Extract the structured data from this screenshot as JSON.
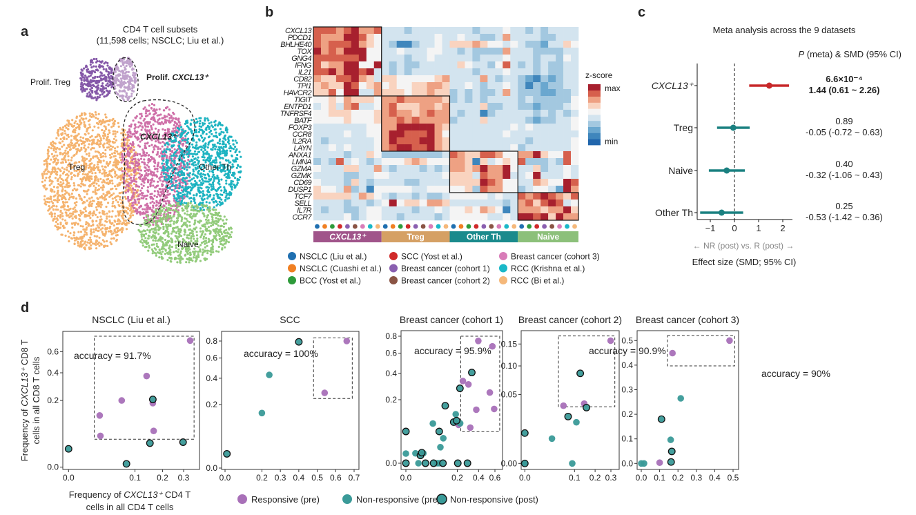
{
  "panel_labels": {
    "a": "a",
    "b": "b",
    "c": "c",
    "d": "d"
  },
  "chart_data": [
    {
      "type": "scatter",
      "panel": "a",
      "title_line1": "CD4 T cell subsets",
      "title_line2": "(11,598 cells; NSCLC; Liu et al.)",
      "clusters": [
        {
          "name": "Treg",
          "color": "#f5b36e"
        },
        {
          "name": "CXCL13⁺",
          "color": "#cf70a8"
        },
        {
          "name": "Other Th",
          "color": "#1db3c1"
        },
        {
          "name": "Naive",
          "color": "#92cb7b"
        },
        {
          "name": "Prolif. Treg",
          "color": "#8558a8"
        },
        {
          "name": "Prolif. CXCL13⁺",
          "color": "#c0a2cc"
        }
      ],
      "labels": {
        "prolif_treg": "Prolif. Treg",
        "prolif_cxcl13_prefix": "Prolif. ",
        "prolif_cxcl13_gene": "CXCL13⁺",
        "cxcl13": "CXCL13⁺",
        "treg": "Treg",
        "other_th": "Other Th",
        "naive": "Naive"
      }
    },
    {
      "type": "heatmap",
      "panel": "b",
      "gene_groups": [
        {
          "group": "CXCL13⁺",
          "genes": [
            "CXCL13",
            "PDCD1",
            "BHLHE40",
            "TOX",
            "GNG4",
            "IFNG",
            "IL21",
            "CD82",
            "TPI1",
            "HAVCR2"
          ]
        },
        {
          "group": "Treg",
          "genes": [
            "TIGIT",
            "ENTPD1",
            "TNFRSF4",
            "BATF",
            "FOXP3",
            "CCR8",
            "IL2RA",
            "LAYN"
          ]
        },
        {
          "group": "Other Th",
          "genes": [
            "ANXA1",
            "LMNA",
            "GZMA",
            "GZMK",
            "CD69",
            "DUSP1"
          ]
        },
        {
          "group": "Naive",
          "genes": [
            "TCF7",
            "SELL",
            "IL7R",
            "CCR7"
          ]
        }
      ],
      "column_groups": [
        {
          "name": "CXCL13⁺",
          "color": "#a0548a",
          "datasets": [
            0,
            1,
            2,
            3,
            4,
            5,
            6,
            7,
            8
          ]
        },
        {
          "name": "Treg",
          "color": "#d5a064",
          "datasets": [
            0,
            1,
            2,
            3,
            4,
            5,
            6,
            7,
            8
          ]
        },
        {
          "name": "Other Th",
          "color": "#1a8a8c",
          "datasets": [
            0,
            1,
            2,
            3,
            4,
            5,
            6,
            7,
            8
          ]
        },
        {
          "name": "Naive",
          "color": "#8cc07a",
          "datasets": [
            0,
            2,
            3,
            4,
            5,
            6,
            7,
            8
          ]
        }
      ],
      "datasets": [
        {
          "name": "NSCLC (Liu et al.)",
          "color": "#1f6fb0"
        },
        {
          "name": "NSCLC (Cuashi et al.)",
          "color": "#f07f22"
        },
        {
          "name": "BCC (Yost et al.)",
          "color": "#2e9b3a"
        },
        {
          "name": "SCC (Yost et al.)",
          "color": "#d02a2a"
        },
        {
          "name": "Breast cancer (cohort 1)",
          "color": "#8a5fb0"
        },
        {
          "name": "Breast cancer (cohort 2)",
          "color": "#8a5444"
        },
        {
          "name": "Breast cancer (cohort 3)",
          "color": "#d87cb8"
        },
        {
          "name": "RCC (Krishna et al.)",
          "color": "#1ab8c8"
        },
        {
          "name": "RCC (Bi et al.)",
          "color": "#f5b87a"
        }
      ],
      "z_levels_note": "0=min … 9=max",
      "z_levels": [
        "888789778 444344444 444344454 43434444",
        "877799865 444444454 454433474 44433444",
        "878889765 431134454 666765545 43324465",
        "978799955 445444554 434333374 44333344",
        "888888955 444344544 444344454 44344354",
        "867799559 434334444 465443584 34343344",
        "889799894 434344444 444344454 44343344",
        "766889764 665555567 444474344 32132344",
        "676698567 565566776 445434454 31323344",
        "668599447 666566766 343433474 33322334",
        "556576665 778777776 343434444 34333335",
        "456478445 786667767 444463344 33233345",
        "556665556 787767877 434413444 44343434",
        "555565556 778787777 344464444 43233445",
        "444444455 779999976 444444445 45444445",
        "444454455 799888975 444444454 44444444",
        "434444445 798889976 444444444 43444445",
        "445454445 789988976 444444445 34444445",
        "444434465 333333334 876688755 77965585",
        "343845434 555676555 776164565 83334385",
        "544466447 434443434 776797795 44634454",
        "444433445 544444445 666487794 45944454",
        "544436434 444334444 666698755 44765598",
        "655473415 555544555 556387755 34554297",
        "666664765 434434334 555554544 87898768",
        "444434434 595665776 444444434 78689845",
        "434433455 444434454 556576514 77767796",
        "444453455 443444434 555554454 99896977"
      ],
      "colormap": [
        "#2166ac",
        "#3f86bc",
        "#6aa7cf",
        "#a3c8e0",
        "#d3e4ef",
        "#f4f4f4",
        "#f9d3bf",
        "#eea183",
        "#d6604d",
        "#a7202e"
      ],
      "colorbar": {
        "title": "z-score",
        "max_label": "max",
        "min_label": "min"
      }
    },
    {
      "type": "forest",
      "panel": "c",
      "title": "Meta analysis across the 9 datasets",
      "header_italic": "P",
      "header_rest": " (meta) & SMD (95% CI)",
      "xlabel": "Effect size (SMD; 95% CI)",
      "direction_label": "← NR (post) vs. R (post) →",
      "xlim": [
        -1.5,
        2.4
      ],
      "xticks": [
        -1,
        0,
        1,
        2
      ],
      "xtick_labels": [
        "−1",
        "0",
        "1",
        "2"
      ],
      "rows": [
        {
          "label": "CXCL13⁺",
          "italic": true,
          "smd": 1.44,
          "lo": 0.61,
          "hi": 2.26,
          "p_text": "6.6×10⁻⁴",
          "ci_text": "1.44 (0.61 ~ 2.26)",
          "bold": true,
          "color": "#c8282a"
        },
        {
          "label": "Treg",
          "italic": false,
          "smd": -0.05,
          "lo": -0.72,
          "hi": 0.63,
          "p_text": "0.89",
          "ci_text": "-0.05 (-0.72 ~ 0.63)",
          "bold": false,
          "color": "#1a8080"
        },
        {
          "label": "Naive",
          "italic": false,
          "smd": -0.32,
          "lo": -1.06,
          "hi": 0.43,
          "p_text": "0.40",
          "ci_text": "-0.32 (-1.06 ~ 0.43)",
          "bold": false,
          "color": "#1a8080"
        },
        {
          "label": "Other Th",
          "italic": false,
          "smd": -0.53,
          "lo": -1.42,
          "hi": 0.36,
          "p_text": "0.25",
          "ci_text": "-0.53 (-1.42 ~ 0.36)",
          "bold": false,
          "color": "#1a8080"
        }
      ]
    },
    {
      "type": "scatter",
      "panel": "d",
      "title": "NSCLC (Liu et al.)",
      "accuracy_text": "accuracy = 91.7%",
      "xscale": "sqrt",
      "yscale": "sqrt",
      "xticks": [
        0,
        0.1,
        0.2,
        0.3
      ],
      "xtick_labels": [
        "0.0",
        "0.1",
        "0.2",
        "0.3"
      ],
      "yticks": [
        0,
        0.2,
        0.4,
        0.6
      ],
      "ytick_labels": [
        "0.0",
        "0.2",
        "0.4",
        "0.6"
      ],
      "box": {
        "x": [
          0.015,
          0.357
        ],
        "y": [
          0.035,
          0.77
        ]
      },
      "points": [
        [
          0.335,
          0.72,
          "R_pre"
        ],
        [
          0.138,
          0.373,
          "R_pre"
        ],
        [
          0.064,
          0.2,
          "R_pre"
        ],
        [
          0.161,
          0.184,
          "R_pre"
        ],
        [
          0.022,
          0.12,
          "R_pre"
        ],
        [
          0.023,
          0.044,
          "R_pre"
        ],
        [
          0.164,
          0.059,
          "R_pre"
        ],
        [
          0.161,
          0.206,
          "NR_post"
        ],
        [
          0,
          0.015,
          "NR_post"
        ],
        [
          0.076,
          0.0005,
          "NR_post"
        ],
        [
          0.15,
          0.026,
          "NR_post"
        ],
        [
          0.297,
          0.028,
          "NR_post"
        ]
      ]
    },
    {
      "type": "scatter",
      "panel": "d",
      "title": "SCC",
      "accuracy_text": "accuracy = 100%",
      "xscale": "linear",
      "yscale": "sqrt",
      "xticks": [
        0,
        0.2,
        0.3,
        0.4,
        0.5,
        0.6,
        0.7
      ],
      "xtick_labels": [
        "0.0",
        "0.2",
        "0.3",
        "0.4",
        "0.5",
        "0.6",
        "0.7"
      ],
      "yticks": [
        0,
        0.2,
        0.4,
        0.6,
        0.8
      ],
      "ytick_labels": [
        "0.0",
        "0.2",
        "0.4",
        "0.6",
        "0.8"
      ],
      "box": {
        "x": [
          0.48,
          0.69
        ],
        "y": [
          0.24,
          0.84
        ]
      },
      "points": [
        [
          0.01,
          0.01,
          "NR_post"
        ],
        [
          0.2,
          0.15,
          "NR_pre"
        ],
        [
          0.24,
          0.43,
          "NR_pre"
        ],
        [
          0.4,
          0.79,
          "NR_post"
        ],
        [
          0.54,
          0.28,
          "R_pre"
        ],
        [
          0.66,
          0.8,
          "R_pre"
        ]
      ]
    },
    {
      "type": "scatter",
      "panel": "d",
      "title": "Breast cancer (cohort 1)",
      "accuracy_text": "accuracy = 95.9%",
      "xscale": "sqrt",
      "yscale": "sqrt",
      "xticks": [
        0,
        0.2,
        0.4,
        0.6
      ],
      "xtick_labels": [
        "0.0",
        "0.2",
        "0.4",
        "0.6"
      ],
      "yticks": [
        0,
        0.2,
        0.4,
        0.6,
        0.8
      ],
      "ytick_labels": [
        "0.0",
        "0.2",
        "0.4",
        "0.6",
        "0.8"
      ],
      "box": {
        "x": [
          0.228,
          0.666
        ],
        "y": [
          0.0495,
          0.8
        ]
      },
      "points": [
        [
          0.397,
          0.742,
          "R_pre"
        ],
        [
          0.566,
          0.677,
          "R_pre"
        ],
        [
          0.246,
          0.335,
          "R_pre"
        ],
        [
          0.296,
          0.308,
          "R_pre"
        ],
        [
          0.533,
          0.248,
          "R_pre"
        ],
        [
          0.375,
          0.142,
          "R_pre"
        ],
        [
          0.59,
          0.146,
          "R_pre"
        ],
        [
          0.314,
          0.063,
          "R_pre"
        ],
        [
          0.21,
          0.073,
          "R_pre"
        ],
        [
          0.188,
          0.119,
          "NR_pre"
        ],
        [
          0.223,
          0.079,
          "NR_pre"
        ],
        [
          0.055,
          0.078,
          "NR_pre"
        ],
        [
          0.106,
          0.031,
          "NR_pre"
        ],
        [
          0.09,
          0.0127,
          "NR_pre"
        ],
        [
          0,
          0.0046,
          "NR_pre"
        ],
        [
          0.007,
          0.0048,
          "NR_pre"
        ],
        [
          0.023,
          0.005,
          "NR_pre"
        ],
        [
          0.012,
          0,
          "NR_pre"
        ],
        [
          0.074,
          0,
          "NR_pre"
        ],
        [
          0.084,
          0,
          "NR_pre"
        ],
        [
          0.329,
          0.408,
          "NR_post"
        ],
        [
          0.221,
          0.278,
          "NR_post"
        ],
        [
          0.117,
          0.164,
          "NR_post"
        ],
        [
          0.173,
          0.084,
          "NR_post"
        ],
        [
          0.194,
          0.09,
          "NR_post"
        ],
        [
          0,
          0.05,
          "NR_post"
        ],
        [
          0.084,
          0.05,
          "NR_post"
        ],
        [
          0.016,
          0.003,
          "NR_post"
        ],
        [
          0.019,
          0.0055,
          "NR_post"
        ],
        [
          0,
          0,
          "NR_post"
        ],
        [
          0.029,
          0,
          "NR_post"
        ],
        [
          0.058,
          0,
          "NR_post"
        ],
        [
          0.104,
          0,
          "NR_post"
        ],
        [
          0.204,
          0,
          "NR_post"
        ],
        [
          0.287,
          0,
          "NR_post"
        ]
      ]
    },
    {
      "type": "scatter",
      "panel": "d",
      "title": "Breast cancer (cohort 2)",
      "accuracy_text": "accuracy = 90.9%",
      "xscale": "sqrt",
      "yscale": "sqrt",
      "xticks": [
        0,
        0.1,
        0.2,
        0.3
      ],
      "xtick_labels": [
        "0.0",
        "0.1",
        "0.2",
        "0.3"
      ],
      "yticks": [
        0,
        0.05,
        0.1,
        0.15
      ],
      "ytick_labels": [
        "0.00",
        "0.05",
        "0.10",
        "0.15"
      ],
      "box": {
        "x": [
          0.0457,
          0.328
        ],
        "y": [
          0.0337,
          0.171
        ]
      },
      "points": [
        [
          0.298,
          0.1585,
          "R_pre"
        ],
        [
          0.0605,
          0.035,
          "R_pre"
        ],
        [
          0.1427,
          0.0376,
          "R_pre"
        ],
        [
          0.1076,
          0.0178,
          "NR_pre"
        ],
        [
          0.0298,
          0.0065,
          "NR_pre"
        ],
        [
          0.091,
          0,
          "NR_pre"
        ],
        [
          0,
          0,
          "NR_pre"
        ],
        [
          0.1245,
          0.0854,
          "NR_post"
        ],
        [
          0.154,
          0.0328,
          "NR_post"
        ],
        [
          0.0758,
          0.0231,
          "NR_post"
        ],
        [
          0,
          0.0097,
          "NR_post"
        ],
        [
          0,
          0,
          "NR_post"
        ]
      ]
    },
    {
      "type": "scatter",
      "panel": "d",
      "title": "Breast cancer (cohort 3)",
      "accuracy_text": "accuracy = 90%",
      "xscale": "linear",
      "yscale": "linear",
      "xticks": [
        0,
        0.1,
        0.2,
        0.3,
        0.4,
        0.5
      ],
      "xtick_labels": [
        "0.0",
        "0.1",
        "0.2",
        "0.3",
        "0.4",
        "0.5"
      ],
      "yticks": [
        0,
        0.1,
        0.2,
        0.3,
        0.4,
        0.5
      ],
      "ytick_labels": [
        "0.0",
        "0.1",
        "0.2",
        "0.3",
        "0.4",
        "0.5"
      ],
      "box": {
        "x": [
          0.1425,
          0.509
        ],
        "y": [
          0.397,
          0.52
        ]
      },
      "points": [
        [
          0.481,
          0.5,
          "R_pre"
        ],
        [
          0.17,
          0.449,
          "R_pre"
        ],
        [
          0.1,
          0.003,
          "R_pre"
        ],
        [
          0.215,
          0.265,
          "NR_pre"
        ],
        [
          0.16,
          0.096,
          "NR_pre"
        ],
        [
          0,
          0,
          "NR_pre"
        ],
        [
          0.015,
          0,
          "NR_pre"
        ],
        [
          0.11,
          0.18,
          "NR_post"
        ],
        [
          0.166,
          0.049,
          "NR_post"
        ],
        [
          0.1625,
          0.006,
          "NR_post"
        ]
      ]
    }
  ],
  "panel_d": {
    "ylabel_line1_pre": "Frequency of ",
    "ylabel_gene": "CXCL13⁺",
    "ylabel_line1_post": " CD8 T",
    "ylabel_line2": "cells in all CD8 T cells",
    "xlabel_line1_pre": "Frequency of ",
    "xlabel_gene": "CXCL13⁺",
    "xlabel_line1_post": " CD4 T",
    "xlabel_line2": "cells in all CD4 T cells",
    "groups": {
      "R_pre": {
        "label": "Responsive (pre)",
        "color": "#a870b8",
        "outline": false
      },
      "NR_pre": {
        "label": "Non-responsive (pre)",
        "color": "#3a9a98",
        "outline": false
      },
      "NR_post": {
        "label": "Non-responsive (post)",
        "color": "#3a9a98",
        "outline": true
      }
    }
  }
}
